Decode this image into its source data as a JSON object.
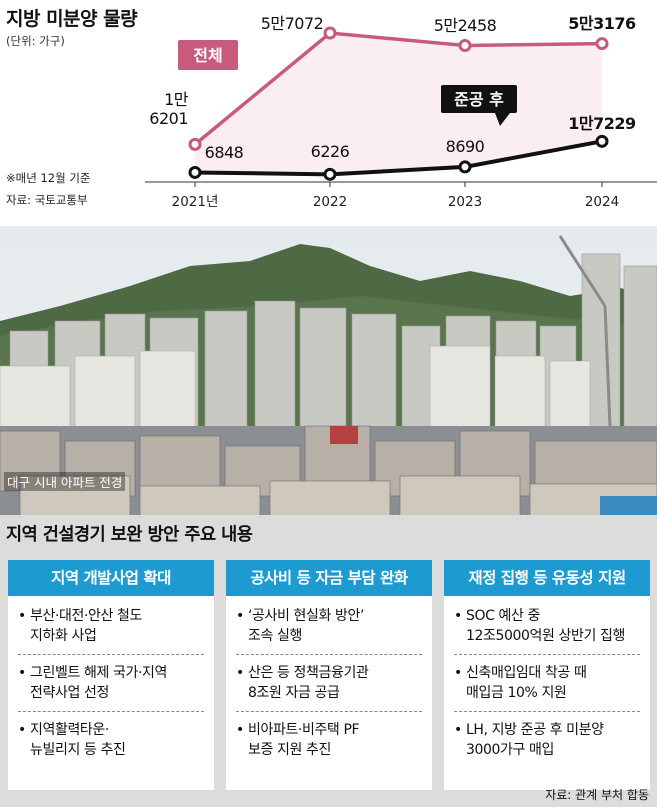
{
  "chart_data": {
    "type": "line",
    "title": "지방 미분양 물량",
    "unit_label": "(단위: 가구)",
    "footnotes": [
      "※매년 12월 기준",
      "자료: 국토교통부"
    ],
    "categories": [
      "2021년",
      "2022",
      "2023",
      "2024"
    ],
    "series": [
      {
        "name": "전체",
        "color": "#c85b7c",
        "values": [
          16201,
          57072,
          52458,
          53176
        ],
        "labels": [
          "1만\n6201",
          "5만7072",
          "5만2458",
          "5만3176"
        ]
      },
      {
        "name": "준공 후",
        "color": "#111111",
        "values": [
          6848,
          6226,
          8690,
          17229
        ],
        "labels": [
          "6848",
          "6226",
          "8690",
          "1만7229"
        ]
      }
    ],
    "ylim": [
      0,
      60000
    ],
    "grid": false
  },
  "photo": {
    "caption": "대구 시내 아파트 전경"
  },
  "section": {
    "title": "지역 건설경기 보완 방안 주요 내용",
    "columns": [
      {
        "heading": "지역 개발사업 확대",
        "items": [
          "부산·대전·안산 철도\n지하화 사업",
          "그린벨트 해제 국가·지역\n전략사업 선정",
          "지역활력타운·\n뉴빌리지 등 추진"
        ]
      },
      {
        "heading": "공사비 등 자금 부담 완화",
        "items": [
          "‘공사비 현실화 방안’\n조속 실행",
          "산은 등 정책금융기관\n8조원 자금 공급",
          "비아파트·비주택 PF\n보증 지원 추진"
        ]
      },
      {
        "heading": "재정 집행 등 유동성 지원",
        "items": [
          "SOC 예산 중\n12조5000억원 상반기 집행",
          "신축매입임대 착공 때\n매입금 10% 지원",
          "LH, 지방 준공 후 미분양\n3000가구 매입"
        ]
      }
    ],
    "source": "자료: 관계 부처 합동"
  }
}
